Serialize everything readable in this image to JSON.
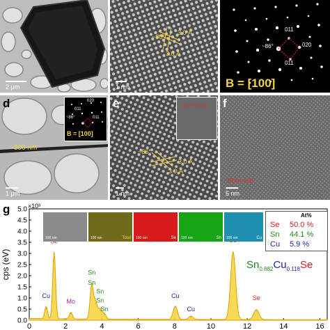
{
  "panels": {
    "a": {
      "label": "",
      "scale": "2 μm"
    },
    "b": {
      "label": "",
      "scale": "1 nm",
      "angle": "~86°",
      "d1": "3.0 Å",
      "d2": "3.0 Å"
    },
    "c": {
      "label": "",
      "spot_top": "011",
      "spot_right": "020",
      "spot_bottom": "011",
      "angle": "~86°",
      "zone_axis": "B = [100]"
    },
    "d": {
      "label": "d",
      "scale": "1 μm",
      "width": "~300 nm",
      "inset_spots": [
        "020",
        "011",
        "011"
      ],
      "inset_angle": "~86°",
      "inset_zone_axis": "B = [100]"
    },
    "e": {
      "label": "e",
      "scale": "1 nm",
      "angle": "~86°",
      "d1": "3.0 Å",
      "d2": "3.0 Å",
      "inset_text": "Lattice dislocation"
    },
    "f": {
      "label": "f",
      "scale": "5 nm",
      "annotation": "Strain field"
    },
    "g": {
      "label": "g",
      "exponent": "×10³",
      "formula": {
        "sn": "Sn",
        "sn_sub": "0.882",
        "cu": "Cu",
        "cu_sub": "0.118",
        "se": "Se"
      },
      "composition_header": "At%",
      "composition": [
        {
          "element": "Se",
          "value": "50.0 %",
          "color": "#d42020"
        },
        {
          "element": "Sn",
          "value": "44.1 %",
          "color": "#1e8a1e"
        },
        {
          "element": "Cu",
          "value": "5.9 %",
          "color": "#2323a8"
        }
      ],
      "maps": [
        {
          "label": "",
          "scale": "100 nm",
          "color": "#9a9a9a"
        },
        {
          "label": "Total",
          "scale": "100 nm",
          "color": "#7d7a1e"
        },
        {
          "label": "Se",
          "scale": "100 nm",
          "color": "#e01818"
        },
        {
          "label": "Sn",
          "scale": "100 nm",
          "color": "#18b018"
        },
        {
          "label": "Cu",
          "scale": "100 nm",
          "color": "#28a8c8"
        }
      ]
    }
  },
  "chart_data": {
    "type": "line",
    "xlabel": "",
    "ylabel": "cps (eV)",
    "exponent": "×10³",
    "xlim": [
      0,
      16.4
    ],
    "ylim": [
      0,
      5.0
    ],
    "x_ticks": [
      "0",
      "2",
      "4",
      "6",
      "8",
      "10",
      "12",
      "14",
      "16"
    ],
    "y_ticks": [
      "0.0",
      "0.5",
      "1.0",
      "1.5",
      "2.0",
      "2.5",
      "3.0",
      "3.5",
      "4.0",
      "4.5",
      "5.0"
    ],
    "series": [
      {
        "color": "#e0a000",
        "peaks": [
          {
            "x": 0.93,
            "y": 0.55
          },
          {
            "x": 1.37,
            "y": 3.0
          },
          {
            "x": 2.29,
            "y": 0.3
          },
          {
            "x": 3.44,
            "y": 1.55
          },
          {
            "x": 3.66,
            "y": 0.75
          },
          {
            "x": 3.9,
            "y": 0.45
          },
          {
            "x": 4.13,
            "y": 0.25
          },
          {
            "x": 8.04,
            "y": 0.6
          },
          {
            "x": 8.9,
            "y": 0.15
          },
          {
            "x": 11.22,
            "y": 3.05
          },
          {
            "x": 12.5,
            "y": 0.45
          }
        ]
      }
    ],
    "peak_labels": [
      {
        "text": "Cu",
        "x": 0.93,
        "y": 1.0,
        "color": "#2323a8"
      },
      {
        "text": "Se",
        "x": 1.37,
        "y": 3.45,
        "color": "#d42020"
      },
      {
        "text": "Mo",
        "x": 2.29,
        "y": 0.75,
        "color": "#a0269a"
      },
      {
        "text": "Sn",
        "x": 3.44,
        "y": 2.05,
        "color": "#1e8a1e"
      },
      {
        "text": "Sn",
        "x": 3.44,
        "y": 1.6,
        "color": "#1e8a1e"
      },
      {
        "text": "Sn",
        "x": 3.9,
        "y": 1.2,
        "color": "#1e8a1e"
      },
      {
        "text": "Sn",
        "x": 3.9,
        "y": 0.8,
        "color": "#1e8a1e"
      },
      {
        "text": "Sn",
        "x": 4.13,
        "y": 0.4,
        "color": "#1e8a1e"
      },
      {
        "text": "Cu",
        "x": 8.04,
        "y": 1.0,
        "color": "#2323a8"
      },
      {
        "text": "Cu",
        "x": 8.9,
        "y": 0.4,
        "color": "#2323a8"
      },
      {
        "text": "Se",
        "x": 11.22,
        "y": 3.5,
        "color": "#d42020"
      },
      {
        "text": "Se",
        "x": 12.5,
        "y": 0.9,
        "color": "#d42020"
      }
    ]
  }
}
